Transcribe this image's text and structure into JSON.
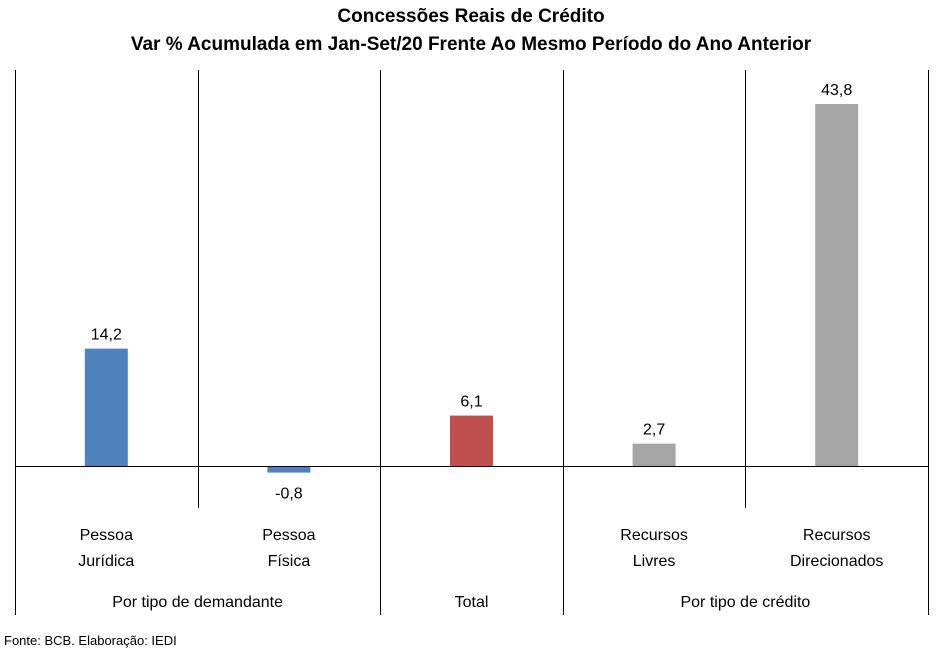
{
  "title": "Concessões Reais de Crédito",
  "subtitle": "Var % Acumulada em Jan-Set/20 Frente Ao Mesmo Período do Ano Anterior",
  "source": "Fonte: BCB. Elaboração: IEDI",
  "chart_data": {
    "type": "bar",
    "title": "Concessões Reais de Crédito",
    "subtitle": "Var % Acumulada em Jan-Set/20 Frente Ao Mesmo Período do Ano Anterior",
    "xlabel": "",
    "ylabel": "",
    "categories": [
      [
        "Pessoa",
        "Jurídica"
      ],
      [
        "Pessoa",
        "Física"
      ],
      [
        "Total"
      ],
      [
        "Recursos",
        "Livres"
      ],
      [
        "Recursos",
        "Direcionados"
      ]
    ],
    "values": [
      14.2,
      -0.8,
      6.1,
      2.7,
      43.8
    ],
    "value_labels": [
      "14,2",
      "-0,8",
      "6,1",
      "2,7",
      "43,8"
    ],
    "colors": [
      "#4F81BD",
      "#4F81BD",
      "#C0504D",
      "#A5A5A5",
      "#A5A5A5"
    ],
    "groups": [
      {
        "label": "Por tipo de demandante",
        "span": [
          0,
          1
        ]
      },
      {
        "label": "Total",
        "span": [
          2,
          2
        ]
      },
      {
        "label": "Por tipo de crédito",
        "span": [
          3,
          4
        ]
      }
    ],
    "grid": false,
    "legend": "none"
  }
}
